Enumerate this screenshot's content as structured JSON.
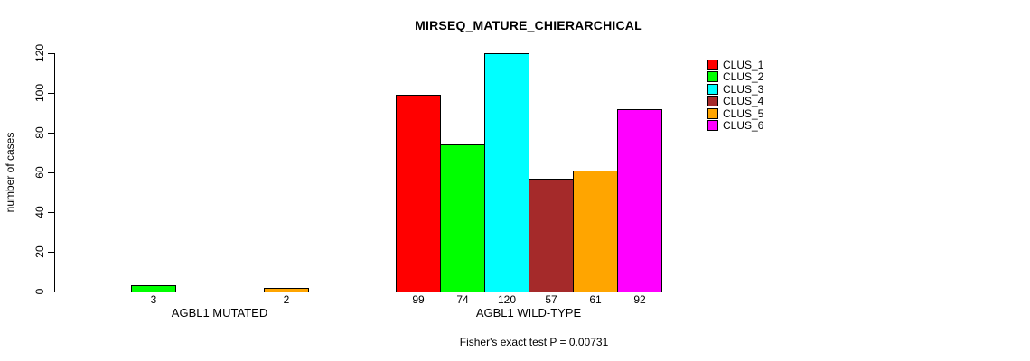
{
  "chart_data": {
    "type": "bar",
    "title": "MIRSEQ_MATURE_CHIERARCHICAL",
    "ylabel": "number of cases",
    "ylim": [
      0,
      120
    ],
    "yticks": [
      0,
      20,
      40,
      60,
      80,
      100,
      120
    ],
    "grid": false,
    "legend_position": "right-outside",
    "background_color": "#ffffff",
    "axis_color": "#000000",
    "clusters": [
      {
        "name": "CLUS_1",
        "color": "#ff0000"
      },
      {
        "name": "CLUS_2",
        "color": "#00ff00"
      },
      {
        "name": "CLUS_3",
        "color": "#00ffff"
      },
      {
        "name": "CLUS_4",
        "color": "#a52a2a"
      },
      {
        "name": "CLUS_5",
        "color": "#ffa500"
      },
      {
        "name": "CLUS_6",
        "color": "#ff00ff"
      }
    ],
    "panels": [
      {
        "group_label": "AGBL1 MUTATED",
        "values": [
          0,
          3,
          0,
          0,
          2,
          0
        ]
      },
      {
        "group_label": "AGBL1 WILD-TYPE",
        "values": [
          99,
          74,
          120,
          57,
          61,
          92
        ]
      }
    ],
    "annotation": "Fisher's exact test P = 0.00731"
  }
}
